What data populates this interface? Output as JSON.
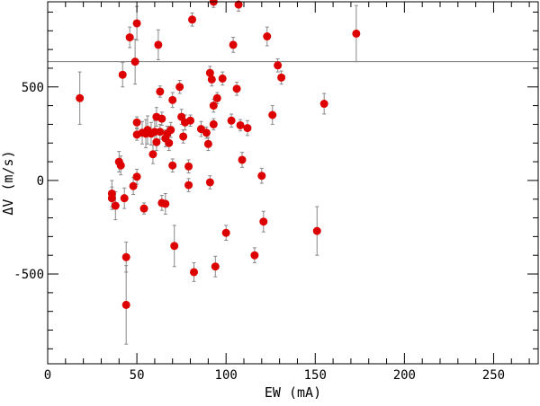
{
  "chart_data": {
    "type": "scatter",
    "title": "",
    "xlabel": "EW (mA)",
    "ylabel": "ΔV (m/s)",
    "xlim": [
      0,
      275
    ],
    "ylim": [
      -980,
      955
    ],
    "x_ticks": [
      0,
      50,
      100,
      150,
      200,
      250
    ],
    "x_tick_labels": [
      "0",
      "50",
      "100",
      "150",
      "200",
      "250"
    ],
    "y_ticks": [
      -500,
      0,
      500
    ],
    "y_tick_labels": [
      "-500",
      "0",
      "500"
    ],
    "grid": false,
    "legend": "none",
    "reference_line_y": 635,
    "colors": {
      "marker": "#dd0000",
      "error_bar": "#888888",
      "axis": "#000000",
      "reference_line": "#777777"
    },
    "series": [
      {
        "points": [
          {
            "x": 18,
            "y": 440,
            "err": 140
          },
          {
            "x": 36,
            "y": -70,
            "err": 70
          },
          {
            "x": 36,
            "y": -95,
            "err": 60
          },
          {
            "x": 38,
            "y": -135,
            "err": 75
          },
          {
            "x": 40,
            "y": 100,
            "err": 55
          },
          {
            "x": 41,
            "y": 80,
            "err": 50
          },
          {
            "x": 42,
            "y": 565,
            "err": 65
          },
          {
            "x": 43,
            "y": -95,
            "err": 55
          },
          {
            "x": 44,
            "y": -410,
            "err": 80
          },
          {
            "x": 44,
            "y": -665,
            "err": 210
          },
          {
            "x": 46,
            "y": 765,
            "err": 55
          },
          {
            "x": 48,
            "y": -30,
            "err": 45
          },
          {
            "x": 49,
            "y": 635,
            "err": 120
          },
          {
            "x": 50,
            "y": 840,
            "err": 90
          },
          {
            "x": 50,
            "y": 310,
            "err": 30
          },
          {
            "x": 50,
            "y": 245,
            "err": 30
          },
          {
            "x": 50,
            "y": 20,
            "err": 40
          },
          {
            "x": 53,
            "y": 255,
            "err": 60
          },
          {
            "x": 54,
            "y": -150,
            "err": 30
          },
          {
            "x": 55,
            "y": 250,
            "err": 75
          },
          {
            "x": 56,
            "y": 270,
            "err": 75
          },
          {
            "x": 58,
            "y": 250,
            "err": 60
          },
          {
            "x": 59,
            "y": 140,
            "err": 50
          },
          {
            "x": 60,
            "y": 260,
            "err": 60
          },
          {
            "x": 61,
            "y": 205,
            "err": 45
          },
          {
            "x": 61,
            "y": 340,
            "err": 50
          },
          {
            "x": 62,
            "y": 725,
            "err": 80
          },
          {
            "x": 63,
            "y": 475,
            "err": 30
          },
          {
            "x": 63,
            "y": 260,
            "err": 40
          },
          {
            "x": 64,
            "y": -120,
            "err": 40
          },
          {
            "x": 64,
            "y": 330,
            "err": 35
          },
          {
            "x": 66,
            "y": -125,
            "err": 55
          },
          {
            "x": 66,
            "y": 225,
            "err": 45
          },
          {
            "x": 67,
            "y": 250,
            "err": 40
          },
          {
            "x": 68,
            "y": 200,
            "err": 40
          },
          {
            "x": 69,
            "y": 270,
            "err": 40
          },
          {
            "x": 70,
            "y": 80,
            "err": 35
          },
          {
            "x": 70,
            "y": 430,
            "err": 40
          },
          {
            "x": 71,
            "y": -350,
            "err": 110
          },
          {
            "x": 74,
            "y": 500,
            "err": 35
          },
          {
            "x": 75,
            "y": 340,
            "err": 40
          },
          {
            "x": 76,
            "y": 235,
            "err": 35
          },
          {
            "x": 77,
            "y": 310,
            "err": 40
          },
          {
            "x": 79,
            "y": 75,
            "err": 35
          },
          {
            "x": 79,
            "y": -25,
            "err": 35
          },
          {
            "x": 80,
            "y": 320,
            "err": 30
          },
          {
            "x": 81,
            "y": 860,
            "err": 35
          },
          {
            "x": 82,
            "y": -490,
            "err": 50
          },
          {
            "x": 86,
            "y": 275,
            "err": 40
          },
          {
            "x": 89,
            "y": 255,
            "err": 30
          },
          {
            "x": 90,
            "y": 195,
            "err": 35
          },
          {
            "x": 91,
            "y": 575,
            "err": 35
          },
          {
            "x": 91,
            "y": -10,
            "err": 35
          },
          {
            "x": 92,
            "y": 540,
            "err": 35
          },
          {
            "x": 93,
            "y": 400,
            "err": 35
          },
          {
            "x": 93,
            "y": 300,
            "err": 30
          },
          {
            "x": 93,
            "y": 955,
            "err": 30
          },
          {
            "x": 94,
            "y": -460,
            "err": 55
          },
          {
            "x": 95,
            "y": 440,
            "err": 30
          },
          {
            "x": 98,
            "y": 545,
            "err": 35
          },
          {
            "x": 100,
            "y": -280,
            "err": 40
          },
          {
            "x": 103,
            "y": 320,
            "err": 35
          },
          {
            "x": 104,
            "y": 725,
            "err": 40
          },
          {
            "x": 106,
            "y": 490,
            "err": 35
          },
          {
            "x": 107,
            "y": 940,
            "err": 35
          },
          {
            "x": 108,
            "y": 295,
            "err": 30
          },
          {
            "x": 109,
            "y": 110,
            "err": 40
          },
          {
            "x": 112,
            "y": 280,
            "err": 40
          },
          {
            "x": 116,
            "y": -400,
            "err": 40
          },
          {
            "x": 120,
            "y": 25,
            "err": 40
          },
          {
            "x": 121,
            "y": -220,
            "err": 55
          },
          {
            "x": 123,
            "y": 770,
            "err": 50
          },
          {
            "x": 126,
            "y": 350,
            "err": 50
          },
          {
            "x": 129,
            "y": 615,
            "err": 35
          },
          {
            "x": 131,
            "y": 550,
            "err": 35
          },
          {
            "x": 151,
            "y": -270,
            "err": 130
          },
          {
            "x": 155,
            "y": 410,
            "err": 55
          },
          {
            "x": 173,
            "y": 785,
            "err": 150
          }
        ]
      }
    ]
  }
}
